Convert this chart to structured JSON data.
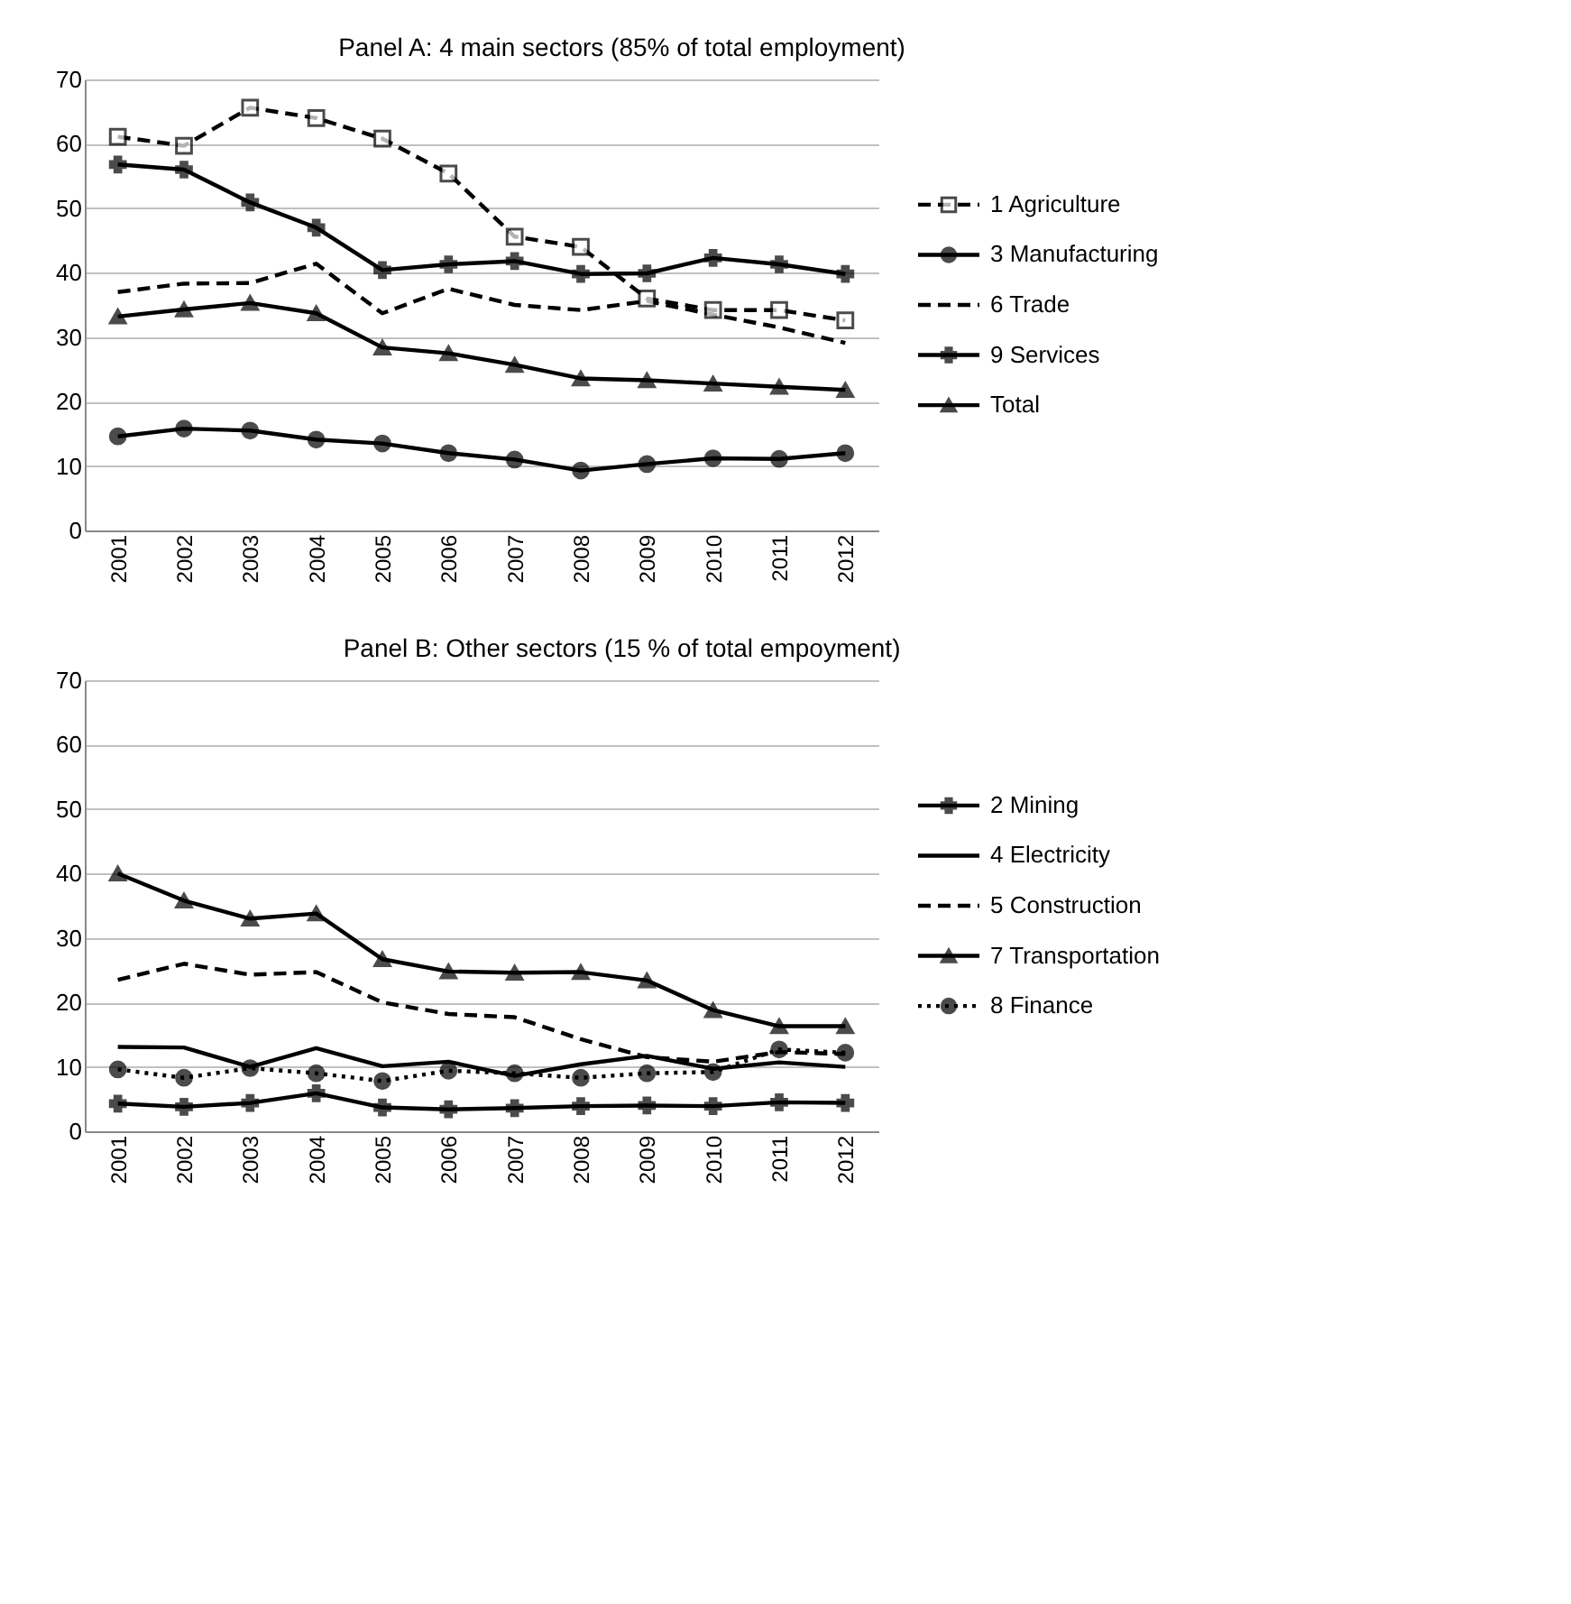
{
  "chart_data": [
    {
      "type": "line",
      "title": "Panel A: 4 main sectors (85% of total employment)",
      "categories": [
        "2001",
        "2002",
        "2003",
        "2004",
        "2005",
        "2006",
        "2007",
        "2008",
        "2009",
        "2010",
        "2011",
        "2012"
      ],
      "ylim": [
        0,
        70
      ],
      "yticks": [
        0,
        10,
        20,
        30,
        40,
        50,
        60,
        70
      ],
      "grid": "y",
      "legend": "right",
      "series": [
        {
          "name": "1 Agriculture",
          "color": "#000000",
          "line_style": "dashed",
          "marker": "square",
          "values": [
            61.1,
            59.7,
            65.6,
            64.0,
            60.8,
            55.4,
            45.6,
            44.0,
            36.0,
            34.2,
            34.2,
            32.6
          ]
        },
        {
          "name": "3 Manufacturing",
          "color": "#000000",
          "line_style": "solid",
          "marker": "circle",
          "values": [
            14.6,
            15.8,
            15.5,
            14.1,
            13.5,
            12.0,
            11.0,
            9.3,
            10.3,
            11.2,
            11.1,
            12.0
          ]
        },
        {
          "name": "6 Trade",
          "color": "#000000",
          "line_style": "dashed",
          "marker": "none",
          "values": [
            37.0,
            38.3,
            38.4,
            41.4,
            33.7,
            37.5,
            35.0,
            34.2,
            35.6,
            33.5,
            31.5,
            29.1
          ]
        },
        {
          "name": "9 Services",
          "color": "#000000",
          "line_style": "solid",
          "marker": "cross",
          "values": [
            56.8,
            56.0,
            50.9,
            47.0,
            40.4,
            41.3,
            41.8,
            39.8,
            39.9,
            42.3,
            41.3,
            39.8
          ]
        },
        {
          "name": "Total",
          "color": "#000000",
          "line_style": "solid",
          "marker": "triangle",
          "values": [
            33.2,
            34.3,
            35.3,
            33.7,
            28.4,
            27.5,
            25.7,
            23.6,
            23.3,
            22.8,
            22.3,
            21.8
          ]
        }
      ]
    },
    {
      "type": "line",
      "title": "Panel B: Other sectors (15 % of total empoyment)",
      "categories": [
        "2001",
        "2002",
        "2003",
        "2004",
        "2005",
        "2006",
        "2007",
        "2008",
        "2009",
        "2010",
        "2011",
        "2012"
      ],
      "ylim": [
        0,
        70
      ],
      "yticks": [
        0,
        10,
        20,
        30,
        40,
        50,
        60,
        70
      ],
      "grid": "y",
      "legend": "right",
      "series": [
        {
          "name": "2 Mining",
          "color": "#000000",
          "line_style": "solid",
          "marker": "cross",
          "values": [
            4.3,
            3.8,
            4.4,
            5.9,
            3.7,
            3.4,
            3.6,
            3.9,
            4.0,
            3.9,
            4.5,
            4.4
          ]
        },
        {
          "name": "4 Electricity",
          "color": "#000000",
          "line_style": "solid",
          "marker": "none",
          "values": [
            13.1,
            13.0,
            10.0,
            12.9,
            10.1,
            10.8,
            8.6,
            10.4,
            11.7,
            9.7,
            10.7,
            10.0
          ]
        },
        {
          "name": "5 Construction",
          "color": "#000000",
          "line_style": "dashed",
          "marker": "none",
          "values": [
            23.5,
            26.0,
            24.3,
            24.7,
            20.0,
            18.2,
            17.7,
            14.3,
            11.5,
            10.8,
            12.3,
            12.0
          ]
        },
        {
          "name": "7 Transportation",
          "color": "#000000",
          "line_style": "solid",
          "marker": "triangle",
          "values": [
            40.0,
            35.8,
            33.0,
            33.8,
            26.7,
            24.8,
            24.6,
            24.7,
            23.4,
            18.8,
            16.3,
            16.3
          ]
        },
        {
          "name": "8 Finance",
          "color": "#000000",
          "line_style": "dotted",
          "marker": "circle",
          "values": [
            9.6,
            8.3,
            9.8,
            9.0,
            7.8,
            9.4,
            9.0,
            8.3,
            9.0,
            9.2,
            12.7,
            12.2
          ]
        }
      ]
    }
  ]
}
